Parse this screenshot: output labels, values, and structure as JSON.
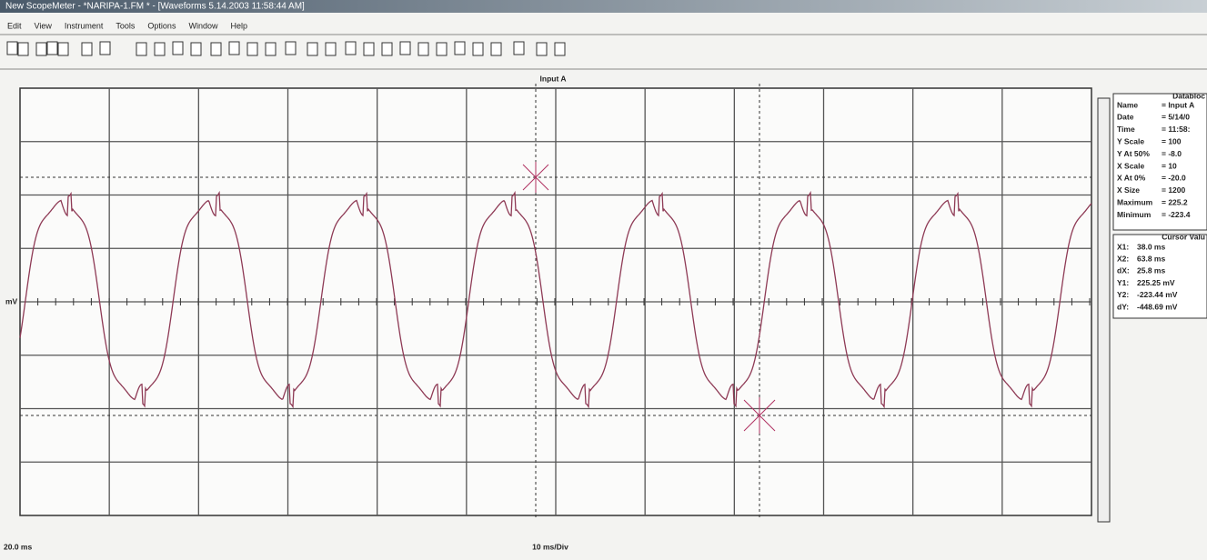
{
  "title_bar": "New ScopeMeter - *NARIPA-1.FM * - [Waveforms 5.14.2003 11:58:44 AM]",
  "menu": [
    "Edit",
    "View",
    "Instrument",
    "Tools",
    "Options",
    "Window",
    "Help"
  ],
  "plot": {
    "channel_label": "Input A",
    "y_unit": "mV",
    "x_start": "20.0 ms",
    "time_per_div": "10 ms/Div"
  },
  "databox": {
    "title": "Databloc",
    "rows": [
      {
        "label": "Name",
        "value": "= Input A"
      },
      {
        "label": "Date",
        "value": "= 5/14/0"
      },
      {
        "label": "Time",
        "value": "= 11:58:"
      },
      {
        "label": "Y Scale",
        "value": "= 100"
      },
      {
        "label": "Y At 50%",
        "value": "= -8.0"
      },
      {
        "label": "X Scale",
        "value": "= 10"
      },
      {
        "label": "X At 0%",
        "value": "= -20.0"
      },
      {
        "label": "X Size",
        "value": "= 1200"
      },
      {
        "label": "Maximum",
        "value": "= 225.2"
      },
      {
        "label": "Minimum",
        "value": "= -223.4"
      }
    ]
  },
  "cursor_box": {
    "title": "Cursor Valu",
    "rows": [
      {
        "label": "X1:",
        "value": "38.0 ms"
      },
      {
        "label": "X2:",
        "value": "63.8 ms"
      },
      {
        "label": "dX:",
        "value": "25.8 ms"
      },
      {
        "label": "Y1:",
        "value": "225.25 mV"
      },
      {
        "label": "Y2:",
        "value": "-223.44 mV"
      },
      {
        "label": "dY:",
        "value": "-448.69 mV"
      }
    ]
  }
}
